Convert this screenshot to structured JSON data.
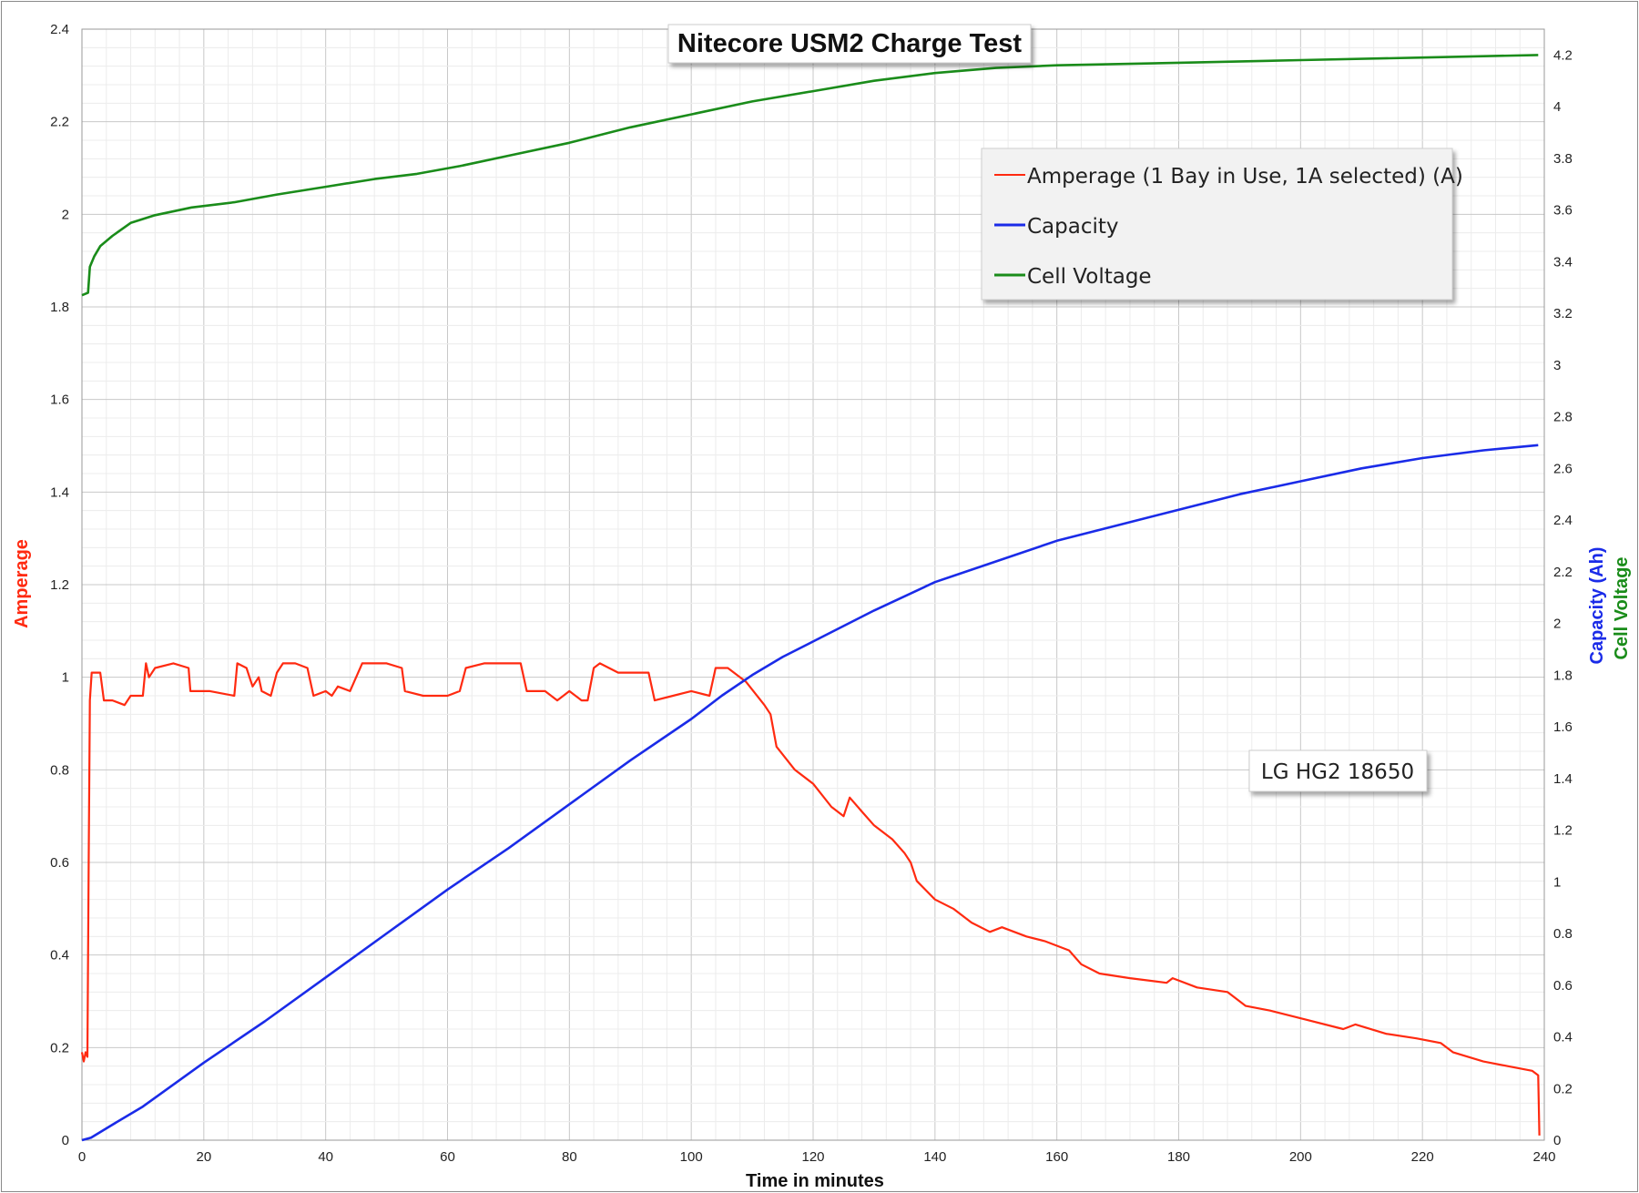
{
  "chart_data": {
    "type": "line",
    "title": "Nitecore USM2 Charge Test",
    "xlabel": "Time in minutes",
    "ylabel_left": "Amperage",
    "ylabel_right": [
      "Capacity (Ah)",
      "Cell Voltage"
    ],
    "xlim": [
      0,
      240
    ],
    "xticks": [
      0,
      20,
      40,
      60,
      80,
      100,
      120,
      140,
      160,
      180,
      200,
      220,
      240
    ],
    "ylim_left": [
      0,
      2.4
    ],
    "yticks_left": [
      0,
      0.2,
      0.4,
      0.6,
      0.8,
      1,
      1.2,
      1.4,
      1.6,
      1.8,
      2,
      2.2,
      2.4
    ],
    "ylim_right": [
      0,
      4.3
    ],
    "yticks_right": [
      0,
      0.2,
      0.4,
      0.6,
      0.8,
      1,
      1.2,
      1.4,
      1.6,
      1.8,
      2,
      2.2,
      2.4,
      2.6,
      2.8,
      3,
      3.2,
      3.4,
      3.6,
      3.8,
      4,
      4.2
    ],
    "grid": true,
    "legend_position": "top-right",
    "annotation": "LG HG2 18650",
    "series": [
      {
        "name": "Amperage (1 Bay in Use, 1A selected) (A)",
        "color": "#ff2a10",
        "axis": "left",
        "points": [
          [
            0,
            0.19
          ],
          [
            0.3,
            0.17
          ],
          [
            0.6,
            0.19
          ],
          [
            0.9,
            0.18
          ],
          [
            1.1,
            0.6
          ],
          [
            1.3,
            0.95
          ],
          [
            1.6,
            1.01
          ],
          [
            3,
            1.01
          ],
          [
            3.6,
            0.95
          ],
          [
            5,
            0.95
          ],
          [
            7,
            0.94
          ],
          [
            8,
            0.96
          ],
          [
            10,
            0.96
          ],
          [
            10.5,
            1.03
          ],
          [
            11,
            1.0
          ],
          [
            12,
            1.02
          ],
          [
            15,
            1.03
          ],
          [
            17.5,
            1.02
          ],
          [
            17.8,
            0.97
          ],
          [
            21,
            0.97
          ],
          [
            25,
            0.96
          ],
          [
            25.5,
            1.03
          ],
          [
            27,
            1.02
          ],
          [
            28,
            0.98
          ],
          [
            29,
            1.0
          ],
          [
            29.5,
            0.97
          ],
          [
            31,
            0.96
          ],
          [
            32,
            1.01
          ],
          [
            33,
            1.03
          ],
          [
            35,
            1.03
          ],
          [
            37,
            1.02
          ],
          [
            38,
            0.96
          ],
          [
            40,
            0.97
          ],
          [
            41,
            0.96
          ],
          [
            42,
            0.98
          ],
          [
            44,
            0.97
          ],
          [
            46,
            1.03
          ],
          [
            50,
            1.03
          ],
          [
            52.5,
            1.02
          ],
          [
            53,
            0.97
          ],
          [
            56,
            0.96
          ],
          [
            60,
            0.96
          ],
          [
            62,
            0.97
          ],
          [
            63,
            1.02
          ],
          [
            66,
            1.03
          ],
          [
            72,
            1.03
          ],
          [
            73,
            0.97
          ],
          [
            76,
            0.97
          ],
          [
            78,
            0.95
          ],
          [
            80,
            0.97
          ],
          [
            82,
            0.95
          ],
          [
            83,
            0.95
          ],
          [
            84,
            1.02
          ],
          [
            85,
            1.03
          ],
          [
            88,
            1.01
          ],
          [
            93,
            1.01
          ],
          [
            94,
            0.95
          ],
          [
            97,
            0.96
          ],
          [
            100,
            0.97
          ],
          [
            103,
            0.96
          ],
          [
            104,
            1.02
          ],
          [
            106,
            1.02
          ],
          [
            109,
            0.99
          ],
          [
            112,
            0.94
          ],
          [
            113,
            0.92
          ],
          [
            114,
            0.85
          ],
          [
            117,
            0.8
          ],
          [
            120,
            0.77
          ],
          [
            123,
            0.72
          ],
          [
            125,
            0.7
          ],
          [
            126,
            0.74
          ],
          [
            128,
            0.71
          ],
          [
            130,
            0.68
          ],
          [
            133,
            0.65
          ],
          [
            135,
            0.62
          ],
          [
            136,
            0.6
          ],
          [
            137,
            0.56
          ],
          [
            140,
            0.52
          ],
          [
            143,
            0.5
          ],
          [
            146,
            0.47
          ],
          [
            149,
            0.45
          ],
          [
            151,
            0.46
          ],
          [
            155,
            0.44
          ],
          [
            158,
            0.43
          ],
          [
            162,
            0.41
          ],
          [
            164,
            0.38
          ],
          [
            167,
            0.36
          ],
          [
            172,
            0.35
          ],
          [
            178,
            0.34
          ],
          [
            179,
            0.35
          ],
          [
            183,
            0.33
          ],
          [
            188,
            0.32
          ],
          [
            191,
            0.29
          ],
          [
            195,
            0.28
          ],
          [
            201,
            0.26
          ],
          [
            207,
            0.24
          ],
          [
            209,
            0.25
          ],
          [
            214,
            0.23
          ],
          [
            219,
            0.22
          ],
          [
            223,
            0.21
          ],
          [
            225,
            0.19
          ],
          [
            230,
            0.17
          ],
          [
            234,
            0.16
          ],
          [
            238,
            0.15
          ],
          [
            239,
            0.14
          ],
          [
            239.2,
            0.01
          ]
        ]
      },
      {
        "name": "Capacity",
        "color": "#1a2be8",
        "axis": "right",
        "points": [
          [
            0,
            0
          ],
          [
            1.5,
            0.01
          ],
          [
            5,
            0.06
          ],
          [
            10,
            0.13
          ],
          [
            20,
            0.3
          ],
          [
            30,
            0.46
          ],
          [
            40,
            0.63
          ],
          [
            50,
            0.8
          ],
          [
            60,
            0.97
          ],
          [
            70,
            1.13
          ],
          [
            80,
            1.3
          ],
          [
            90,
            1.47
          ],
          [
            100,
            1.63
          ],
          [
            105,
            1.72
          ],
          [
            110,
            1.8
          ],
          [
            115,
            1.87
          ],
          [
            120,
            1.93
          ],
          [
            130,
            2.05
          ],
          [
            140,
            2.16
          ],
          [
            150,
            2.24
          ],
          [
            160,
            2.32
          ],
          [
            170,
            2.38
          ],
          [
            180,
            2.44
          ],
          [
            190,
            2.5
          ],
          [
            200,
            2.55
          ],
          [
            210,
            2.6
          ],
          [
            220,
            2.64
          ],
          [
            230,
            2.67
          ],
          [
            239,
            2.69
          ]
        ]
      },
      {
        "name": "Cell Voltage",
        "color": "#1a8c1a",
        "axis": "right",
        "points": [
          [
            0,
            3.27
          ],
          [
            1,
            3.28
          ],
          [
            1.3,
            3.38
          ],
          [
            2,
            3.42
          ],
          [
            3,
            3.46
          ],
          [
            5,
            3.5
          ],
          [
            8,
            3.55
          ],
          [
            12,
            3.58
          ],
          [
            18,
            3.61
          ],
          [
            25,
            3.63
          ],
          [
            32,
            3.66
          ],
          [
            40,
            3.69
          ],
          [
            48,
            3.72
          ],
          [
            55,
            3.74
          ],
          [
            62,
            3.77
          ],
          [
            70,
            3.81
          ],
          [
            80,
            3.86
          ],
          [
            90,
            3.92
          ],
          [
            100,
            3.97
          ],
          [
            110,
            4.02
          ],
          [
            120,
            4.06
          ],
          [
            130,
            4.1
          ],
          [
            140,
            4.13
          ],
          [
            150,
            4.15
          ],
          [
            160,
            4.16
          ],
          [
            180,
            4.17
          ],
          [
            200,
            4.18
          ],
          [
            220,
            4.19
          ],
          [
            239,
            4.2
          ]
        ]
      }
    ]
  }
}
